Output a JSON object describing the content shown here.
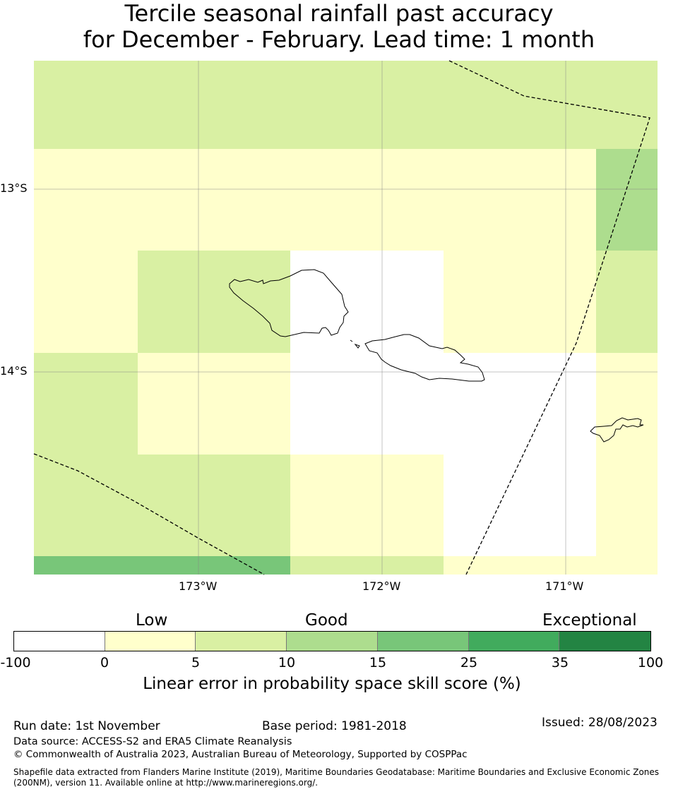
{
  "title": {
    "line1": "Tercile seasonal rainfall past accuracy",
    "line2": "for December - February. Lead time: 1 month"
  },
  "map": {
    "lon_labels": [
      "173°W",
      "172°W",
      "171°W"
    ],
    "lat_labels": [
      "13°S",
      "14°S"
    ],
    "colors": {
      "c0": "#ffffff",
      "c1": "#ffffcc",
      "c2": "#d9f0a3",
      "c3": "#addd8e",
      "c4": "#78c679",
      "c5": "#41ab5d",
      "c6": "#238443"
    }
  },
  "colorbar": {
    "categories": [
      "Low",
      "Good",
      "Exceptional"
    ],
    "ticks": [
      "-100",
      "0",
      "5",
      "10",
      "15",
      "25",
      "35",
      "100"
    ],
    "colors": [
      "#ffffff",
      "#ffffcc",
      "#d9f0a3",
      "#addd8e",
      "#78c679",
      "#41ab5d",
      "#238443"
    ],
    "label": "Linear error in probability space skill score (%)"
  },
  "footer": {
    "run_date": "Run date: 1st November",
    "base_period": "Base period: 1981-2018",
    "issued": "Issued: 28/08/2023",
    "data_source": "Data source: ACCESS-S2 and ERA5 Climate Reanalysis",
    "copyright": "© Commonwealth of Australia 2023, Australian Bureau of Meteorology, Supported by COSPPac",
    "shapefile_line1": "Shapefile data extracted from Flanders Marine Institute (2019), Maritime Boundaries Geodatabase: Maritime Boundaries and Exclusive Economic Zones",
    "shapefile_line2": "(200NM), version 11. Available online at http://www.marineregions.org/."
  }
}
